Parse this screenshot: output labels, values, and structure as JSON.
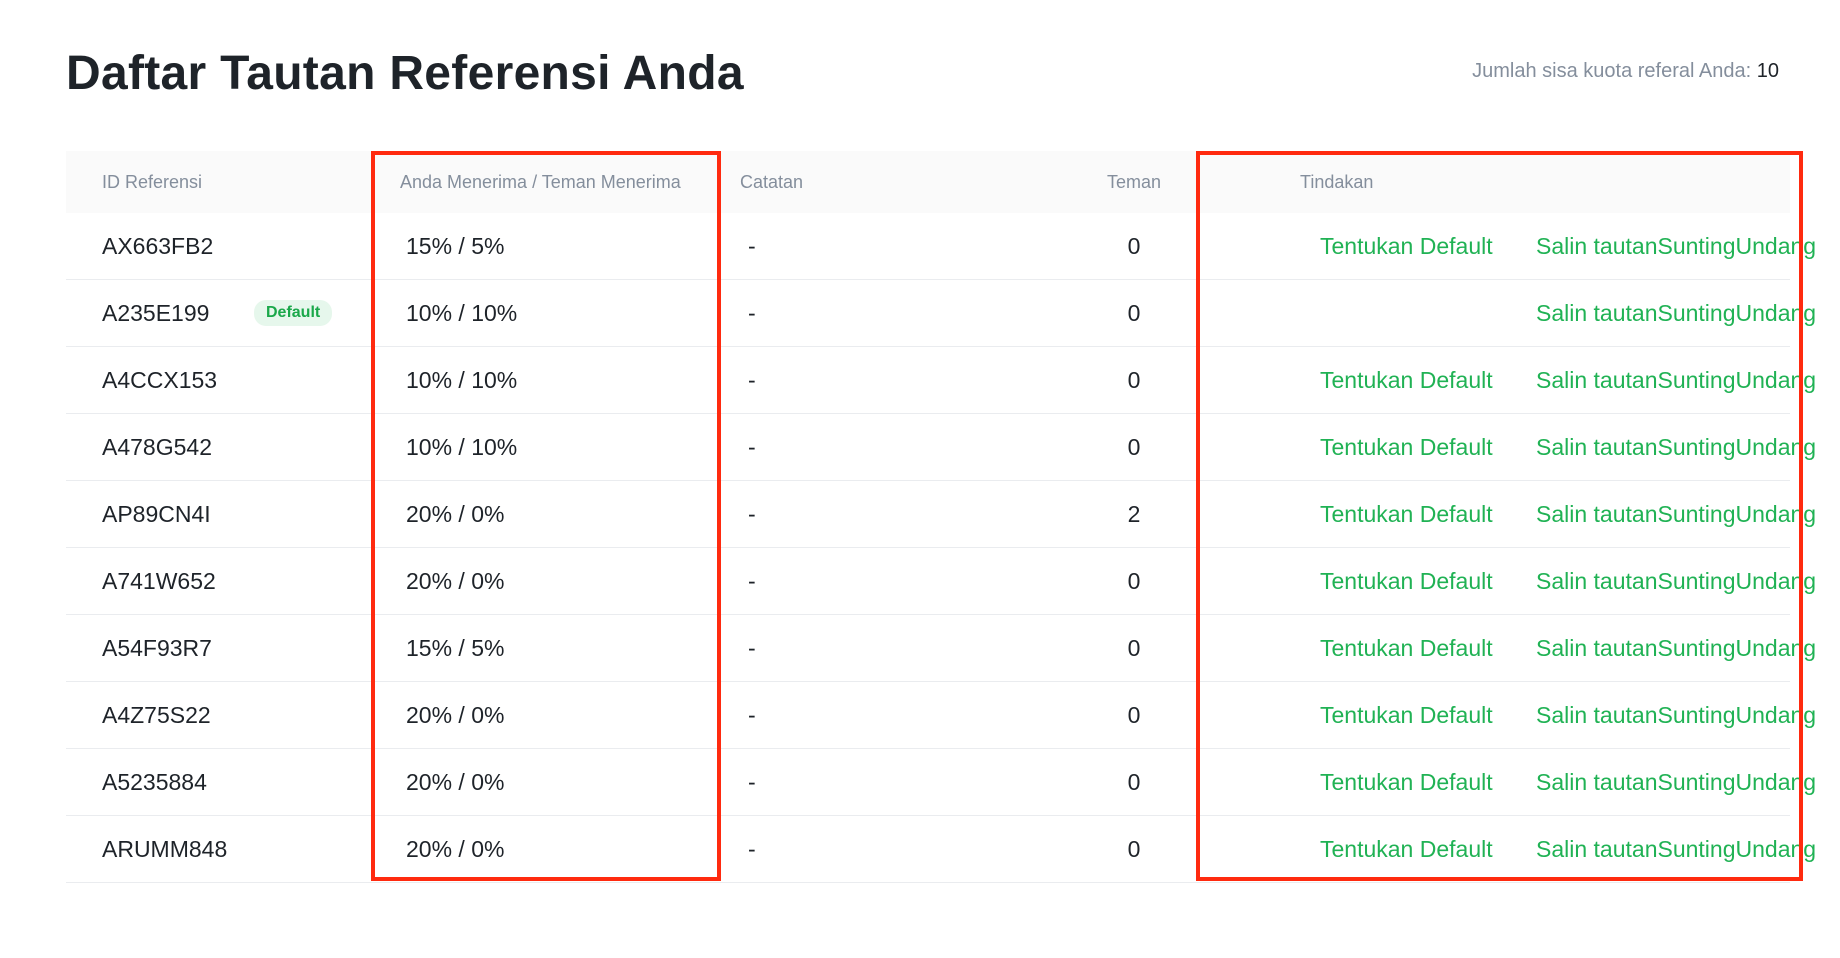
{
  "page": {
    "title": "Daftar Tautan Referensi Anda",
    "quota_label": "Jumlah sisa kuota referal Anda: ",
    "quota_value": "10"
  },
  "table": {
    "headers": {
      "id": "ID Referensi",
      "rate": "Anda Menerima / Teman Menerima",
      "note": "Catatan",
      "friends": "Teman",
      "actions": "Tindakan"
    },
    "action_labels": {
      "set_default": "Tentukan Default",
      "copy_link": "Salin tautan",
      "edit": "Sunting",
      "invite": "Undang"
    },
    "default_badge": "Default",
    "rows": [
      {
        "id": "AX663FB2",
        "rate": "15% / 5%",
        "note": "-",
        "friends": "0",
        "is_default": false
      },
      {
        "id": "A235E199",
        "rate": "10% / 10%",
        "note": "-",
        "friends": "0",
        "is_default": true
      },
      {
        "id": "A4CCX153",
        "rate": "10% / 10%",
        "note": "-",
        "friends": "0",
        "is_default": false
      },
      {
        "id": "A478G542",
        "rate": "10% / 10%",
        "note": "-",
        "friends": "0",
        "is_default": false
      },
      {
        "id": "AP89CN4I",
        "rate": "20% / 0%",
        "note": "-",
        "friends": "2",
        "is_default": false
      },
      {
        "id": "A741W652",
        "rate": "20% / 0%",
        "note": "-",
        "friends": "0",
        "is_default": false
      },
      {
        "id": "A54F93R7",
        "rate": "15% / 5%",
        "note": "-",
        "friends": "0",
        "is_default": false
      },
      {
        "id": "A4Z75S22",
        "rate": "20% / 0%",
        "note": "-",
        "friends": "0",
        "is_default": false
      },
      {
        "id": "A5235884",
        "rate": "20% / 0%",
        "note": "-",
        "friends": "0",
        "is_default": false
      },
      {
        "id": "ARUMM848",
        "rate": "20% / 0%",
        "note": "-",
        "friends": "0",
        "is_default": false
      }
    ]
  },
  "colors": {
    "accent_green": "#20b254",
    "highlight_red": "#ff2a0f",
    "badge_bg": "#e6f7ec"
  }
}
